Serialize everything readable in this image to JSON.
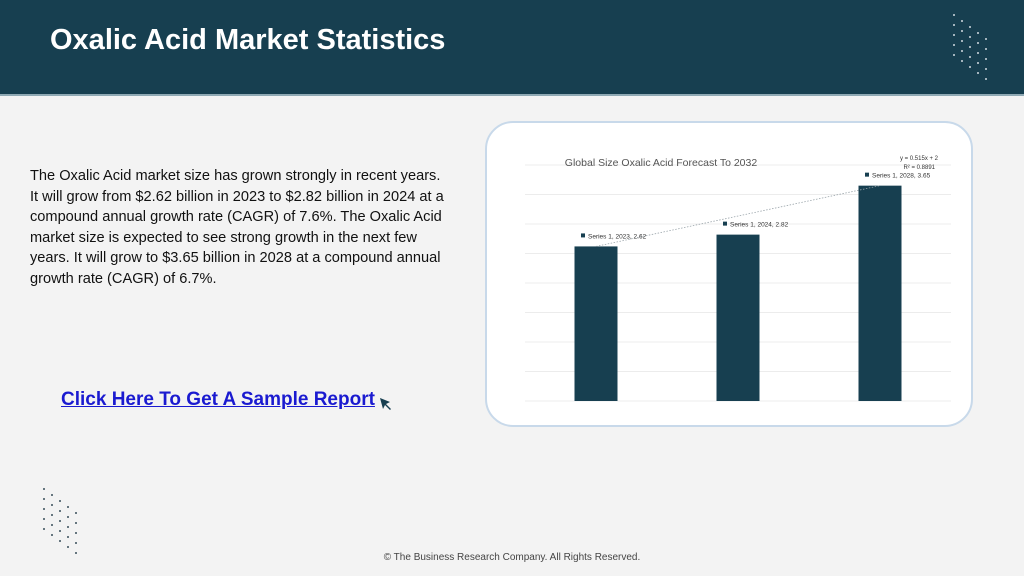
{
  "header": {
    "title": "Oxalic Acid Market Statistics",
    "background_color": "#173f50"
  },
  "description": "The Oxalic Acid market size has grown strongly in recent years. It will grow from $2.62 billion in 2023 to $2.82 billion in 2024 at a compound annual growth rate (CAGR) of 7.6%. The Oxalic Acid market size is expected to see strong growth in the next few years. It will grow to $3.65 billion in 2028 at a compound annual growth rate (CAGR) of 6.7%.",
  "cta": {
    "label": "Click Here To Get A Sample Report",
    "icon": "cursor-arrow-icon"
  },
  "footer": {
    "copyright": "© The Business Research Company. All Rights Reserved."
  },
  "chart_data": {
    "type": "bar",
    "title": "Global Size Oxalic Acid Forecast To 2032",
    "categories": [
      "2023",
      "2024",
      "2028"
    ],
    "series": [
      {
        "name": "Series 1",
        "values": [
          2.62,
          2.82,
          3.65
        ],
        "color": "#173f50"
      }
    ],
    "data_labels": [
      "Series 1, 2023, 2.62",
      "Series 1, 2024, 2.82",
      "Series 1, 2028, 3.65"
    ],
    "trendline": {
      "style": "dotted",
      "equation": "y = 0.515x + 2",
      "r_squared": "R² = 0.8891"
    },
    "ylim": [
      0,
      4
    ],
    "grid": true,
    "legend": "none",
    "xlabel": "",
    "ylabel": ""
  }
}
